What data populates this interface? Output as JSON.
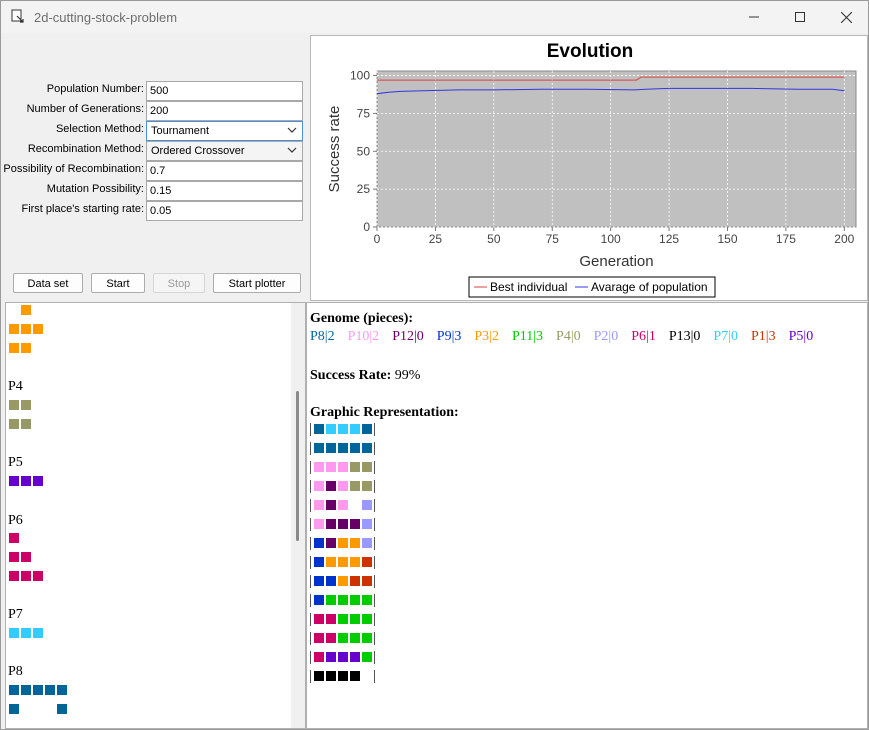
{
  "window": {
    "title": "2d-cutting-stock-problem"
  },
  "config": {
    "fields": [
      {
        "label": "Population Number:",
        "value": "500",
        "kind": "text"
      },
      {
        "label": "Number of Generations:",
        "value": "200",
        "kind": "text"
      },
      {
        "label": "Selection Method:",
        "value": "Tournament",
        "kind": "select"
      },
      {
        "label": "Recombination Method:",
        "value": "Ordered Crossover",
        "kind": "select"
      },
      {
        "label": "Possibility of Recombination:",
        "value": "0.7",
        "kind": "text"
      },
      {
        "label": "Mutation Possibility:",
        "value": "0.15",
        "kind": "text"
      },
      {
        "label": "First place's starting rate:",
        "value": "0.05",
        "kind": "text"
      }
    ],
    "buttons": {
      "data_set": "Data set",
      "start": "Start",
      "stop": "Stop",
      "start_plotter": "Start plotter"
    }
  },
  "chart_data": {
    "type": "line",
    "title": "Evolution",
    "xlabel": "Generation",
    "ylabel": "Success rate",
    "xlim": [
      0,
      205
    ],
    "ylim": [
      0,
      103
    ],
    "xticks": [
      0,
      25,
      50,
      75,
      100,
      125,
      150,
      175,
      200
    ],
    "yticks": [
      0,
      25,
      50,
      75,
      100
    ],
    "grid": true,
    "plot_background": "#c0c0c0",
    "legend_position": "bottom",
    "series": [
      {
        "name": "Best individual",
        "color": "#e04040",
        "points": [
          [
            0,
            97
          ],
          [
            111,
            97
          ],
          [
            113,
            99
          ],
          [
            200,
            99
          ]
        ]
      },
      {
        "name": "Avarage of population",
        "color": "#3535e0",
        "points": [
          [
            0,
            88
          ],
          [
            5,
            89
          ],
          [
            10,
            89.5
          ],
          [
            20,
            90
          ],
          [
            35,
            90.5
          ],
          [
            50,
            90.5
          ],
          [
            70,
            91
          ],
          [
            90,
            91
          ],
          [
            110,
            90.5
          ],
          [
            115,
            91
          ],
          [
            125,
            91.5
          ],
          [
            140,
            91.5
          ],
          [
            160,
            91.5
          ],
          [
            180,
            91
          ],
          [
            195,
            91
          ],
          [
            200,
            90
          ]
        ]
      }
    ]
  },
  "pieces_panel": {
    "pieces": [
      {
        "label": "",
        "color": "#ff9900",
        "rows": [
          [
            1
          ],
          [
            0,
            1,
            2
          ],
          [
            0,
            1
          ]
        ]
      },
      {
        "label": "P4",
        "color": "#999966",
        "rows": [
          [
            0,
            1
          ],
          [
            0,
            1
          ]
        ]
      },
      {
        "label": "P5",
        "color": "#6600cc",
        "rows": [
          [
            0,
            1,
            2
          ]
        ]
      },
      {
        "label": "P6",
        "color": "#cc0066",
        "rows": [
          [
            0
          ],
          [
            0,
            1
          ],
          [
            0,
            1,
            2
          ]
        ]
      },
      {
        "label": "P7",
        "color": "#33ccff",
        "rows": [
          [
            0,
            1,
            2
          ]
        ]
      },
      {
        "label": "P8",
        "color": "#006699",
        "rows": [
          [
            0,
            1,
            2,
            3,
            4
          ],
          [
            0,
            4
          ]
        ]
      }
    ]
  },
  "result": {
    "genome_heading": "Genome (pieces):",
    "genes": [
      {
        "text": "P8|2",
        "color": "#006699"
      },
      {
        "text": "P10|2",
        "color": "#ff99ee"
      },
      {
        "text": "P12|0",
        "color": "#660066"
      },
      {
        "text": "P9|3",
        "color": "#0033cc"
      },
      {
        "text": "P3|2",
        "color": "#ff9900"
      },
      {
        "text": "P11|3",
        "color": "#00cc00"
      },
      {
        "text": "P4|0",
        "color": "#999966"
      },
      {
        "text": "P2|0",
        "color": "#9999ff"
      },
      {
        "text": "P6|1",
        "color": "#cc0066"
      },
      {
        "text": "P13|0",
        "color": "#000000"
      },
      {
        "text": "P7|0",
        "color": "#33ccff"
      },
      {
        "text": "P1|3",
        "color": "#cc3300"
      },
      {
        "text": "P5|0",
        "color": "#6600cc"
      }
    ],
    "success_label": "Success Rate:",
    "success_value": "99%",
    "graphic_heading": "Graphic Representation:",
    "grid_colors": {
      "a": "#006699",
      "b": "#33ccff",
      "p": "#ff99ee",
      "o": "#999966",
      "m": "#660066",
      "l": "#9999ff",
      "d": "#0033cc",
      "r": "#ff9900",
      "e": "#cc3300",
      "g": "#00cc00",
      "k": "#cc0066",
      "v": "#6600cc",
      "n": "#000000"
    },
    "grid": [
      "abbba",
      "aaaaa",
      "pppoo",
      "pmpoo",
      "pmp.l",
      "pmmml",
      "dmrrl",
      "drrre",
      "ddree",
      "dgggg",
      "kkggg",
      "kkggg",
      "kvvvg",
      "nnnn."
    ]
  }
}
